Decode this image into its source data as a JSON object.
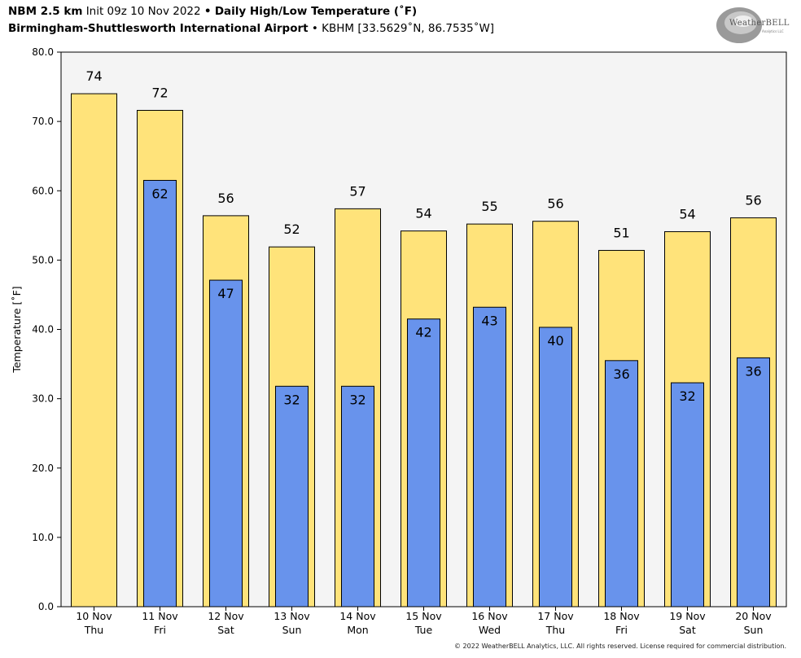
{
  "header": {
    "model": "NBM 2.5 km",
    "init": "Init 09z 10 Nov 2022",
    "sep": "•",
    "product": "Daily High/Low Temperature (˚F)",
    "station_name": "Birmingham-Shuttlesworth International Airport",
    "station_info": "KBHM [33.5629˚N, 86.7535˚W]"
  },
  "logo": {
    "text": "WeatherBELL",
    "subtext": "Analytics LLC"
  },
  "footer": {
    "copyright": "© 2022 WeatherBELL Analytics, LLC. All rights reserved. License required for commercial distribution."
  },
  "colors": {
    "high": "#FFE37A",
    "low": "#6893EC",
    "plot_bg": "#F4F4F4",
    "edge": "#000000"
  },
  "chart_data": {
    "type": "bar",
    "ylabel": "Temperature [˚F]",
    "ylim": [
      0,
      80
    ],
    "yticks": [
      "0.0",
      "10.0",
      "20.0",
      "30.0",
      "40.0",
      "50.0",
      "60.0",
      "70.0",
      "80.0"
    ],
    "categories": [
      [
        "10 Nov",
        "Thu"
      ],
      [
        "11 Nov",
        "Fri"
      ],
      [
        "12 Nov",
        "Sat"
      ],
      [
        "13 Nov",
        "Sun"
      ],
      [
        "14 Nov",
        "Mon"
      ],
      [
        "15 Nov",
        "Tue"
      ],
      [
        "16 Nov",
        "Wed"
      ],
      [
        "17 Nov",
        "Thu"
      ],
      [
        "18 Nov",
        "Fri"
      ],
      [
        "19 Nov",
        "Sat"
      ],
      [
        "20 Nov",
        "Sun"
      ]
    ],
    "series": [
      {
        "key": "high",
        "values": [
          74,
          71.6,
          56.4,
          51.9,
          57.4,
          54.2,
          55.2,
          55.6,
          51.4,
          54.1,
          56.1
        ],
        "labels": [
          "74",
          "72",
          "56",
          "52",
          "57",
          "54",
          "55",
          "56",
          "51",
          "54",
          "56"
        ]
      },
      {
        "key": "low",
        "values": [
          null,
          61.5,
          47.1,
          31.8,
          31.8,
          41.5,
          43.2,
          40.3,
          35.5,
          32.3,
          35.9
        ],
        "labels": [
          "",
          "62",
          "47",
          "32",
          "32",
          "42",
          "43",
          "40",
          "36",
          "32",
          "36"
        ]
      }
    ],
    "grid": false
  }
}
